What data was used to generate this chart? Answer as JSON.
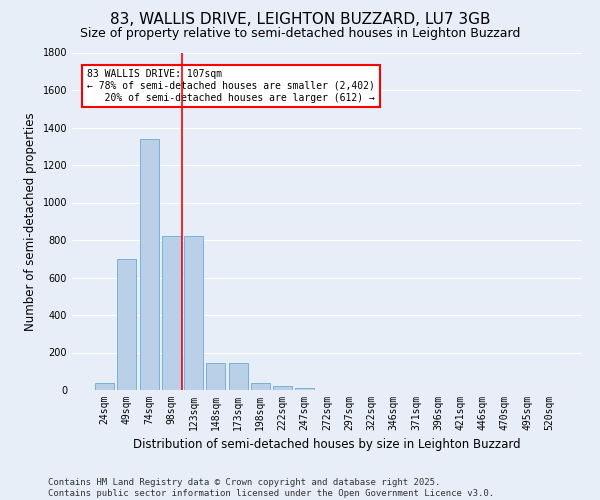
{
  "title": "83, WALLIS DRIVE, LEIGHTON BUZZARD, LU7 3GB",
  "subtitle": "Size of property relative to semi-detached houses in Leighton Buzzard",
  "xlabel": "Distribution of semi-detached houses by size in Leighton Buzzard",
  "ylabel": "Number of semi-detached properties",
  "categories": [
    "24sqm",
    "49sqm",
    "74sqm",
    "98sqm",
    "123sqm",
    "148sqm",
    "173sqm",
    "198sqm",
    "222sqm",
    "247sqm",
    "272sqm",
    "297sqm",
    "322sqm",
    "346sqm",
    "371sqm",
    "396sqm",
    "421sqm",
    "446sqm",
    "470sqm",
    "495sqm",
    "520sqm"
  ],
  "values": [
    38,
    700,
    1340,
    820,
    820,
    145,
    145,
    38,
    22,
    10,
    0,
    0,
    0,
    0,
    0,
    0,
    0,
    0,
    0,
    0,
    0
  ],
  "bar_color": "#bad0e8",
  "bar_edge_color": "#6aaad4",
  "vline_x": 3.5,
  "vline_color": "red",
  "annotation_text": "83 WALLIS DRIVE: 107sqm\n← 78% of semi-detached houses are smaller (2,402)\n   20% of semi-detached houses are larger (612) →",
  "annotation_box_color": "white",
  "annotation_box_edge": "red",
  "ylim": [
    0,
    1800
  ],
  "yticks": [
    0,
    200,
    400,
    600,
    800,
    1000,
    1200,
    1400,
    1600,
    1800
  ],
  "background_color": "#e8eef8",
  "grid_color": "white",
  "footer": "Contains HM Land Registry data © Crown copyright and database right 2025.\nContains public sector information licensed under the Open Government Licence v3.0.",
  "title_fontsize": 11,
  "subtitle_fontsize": 9,
  "xlabel_fontsize": 8.5,
  "ylabel_fontsize": 8.5,
  "tick_fontsize": 7,
  "footer_fontsize": 6.5
}
